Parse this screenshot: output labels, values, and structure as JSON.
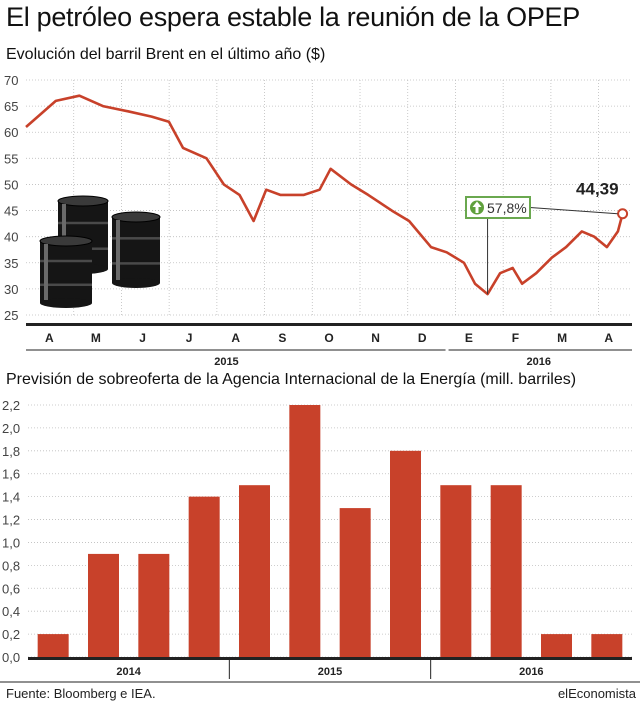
{
  "headline": "El petróleo espera estable la reunión de la OPEP",
  "source": "Fuente: Bloomberg e IEA.",
  "brand": "elEconomista",
  "colors": {
    "series": "#c8412a",
    "grid": "#bdbdbd",
    "axis": "#222222",
    "badge_border": "#6aa84f",
    "badge_fill": "#5fa03c"
  },
  "icons": {
    "barrels": "oil-barrels-icon",
    "badge": "up-arrow-icon"
  },
  "chart_data": [
    {
      "type": "line",
      "title": "Evolución del barril Brent en el último año ($)",
      "ylim": [
        25,
        70
      ],
      "yticks": [
        "25",
        "30",
        "35",
        "40",
        "45",
        "50",
        "55",
        "60",
        "65",
        "70"
      ],
      "month_labels": [
        "A",
        "M",
        "J",
        "J",
        "A",
        "S",
        "O",
        "N",
        "D",
        "E",
        "F",
        "M",
        "A"
      ],
      "year_labels": [
        "2015",
        "2016"
      ],
      "grid": true,
      "last_value_label": "44,39",
      "change_label": "57,8%",
      "x": [
        "2015-04-01",
        "2015-04-20",
        "2015-05-05",
        "2015-05-20",
        "2015-06-05",
        "2015-06-20",
        "2015-07-01",
        "2015-07-10",
        "2015-07-25",
        "2015-08-05",
        "2015-08-15",
        "2015-08-24",
        "2015-09-01",
        "2015-09-10",
        "2015-09-25",
        "2015-10-05",
        "2015-10-12",
        "2015-10-25",
        "2015-11-05",
        "2015-11-20",
        "2015-12-01",
        "2015-12-15",
        "2015-12-25",
        "2016-01-05",
        "2016-01-12",
        "2016-01-20",
        "2016-01-28",
        "2016-02-05",
        "2016-02-11",
        "2016-02-20",
        "2016-03-01",
        "2016-03-10",
        "2016-03-20",
        "2016-03-28",
        "2016-04-05",
        "2016-04-12",
        "2016-04-15"
      ],
      "values": [
        61,
        66,
        67,
        65,
        64,
        63,
        62,
        57,
        55,
        50,
        48,
        43,
        49,
        48,
        48,
        49,
        53,
        50,
        48,
        45,
        43,
        38,
        37,
        35,
        31,
        29,
        33,
        34,
        31,
        33,
        36,
        38,
        41,
        40,
        38,
        41,
        44.39
      ]
    },
    {
      "type": "bar",
      "title": "Previsión de sobreoferta de la Agencia Internacional de la Energía (mill. barriles)",
      "ylim": [
        0,
        2.2
      ],
      "yticks": [
        "0,0",
        "0,2",
        "0,4",
        "0,6",
        "0,8",
        "1,0",
        "1,2",
        "1,4",
        "1,6",
        "1,8",
        "2,0",
        "2,2"
      ],
      "year_labels": [
        "2014",
        "2015",
        "2016"
      ],
      "grid": true,
      "values": [
        0.2,
        0.9,
        0.9,
        1.4,
        1.5,
        2.2,
        1.3,
        1.8,
        1.5,
        1.5,
        0.2,
        0.2
      ]
    }
  ]
}
